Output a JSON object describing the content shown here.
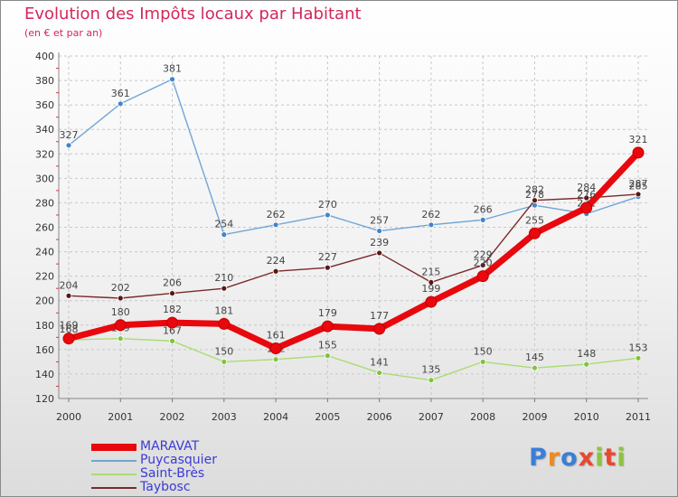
{
  "header": {
    "title": "Evolution des Impôts locaux par Habitant",
    "subtitle": "(en € et par an)"
  },
  "brand": {
    "text": "Proxiti",
    "letter_colors": [
      "#3a7fd5",
      "#f08a1c",
      "#3a7fd5",
      "#e64a2e",
      "#8bc53f",
      "#e64a2e",
      "#8bc53f"
    ]
  },
  "chart_data": {
    "type": "line",
    "x": [
      "2000",
      "2001",
      "2002",
      "2003",
      "2004",
      "2005",
      "2006",
      "2007",
      "2008",
      "2009",
      "2010",
      "2011"
    ],
    "ylim": [
      120,
      400
    ],
    "yticks": [
      120,
      140,
      160,
      180,
      200,
      220,
      240,
      260,
      280,
      300,
      320,
      340,
      360,
      380,
      400
    ],
    "grid": true,
    "legend_position": "bottom-left",
    "series": [
      {
        "name": "MARAVAT",
        "color": "#e8080d",
        "marker_color": "#e8080d",
        "emphasis": true,
        "values": [
          169,
          180,
          182,
          181,
          161,
          179,
          177,
          199,
          220,
          255,
          276,
          321
        ]
      },
      {
        "name": "Puycasquier",
        "color": "#6fa6d6",
        "marker_color": "#3f86c9",
        "emphasis": false,
        "values": [
          327,
          361,
          381,
          254,
          262,
          270,
          257,
          262,
          266,
          278,
          271,
          285
        ]
      },
      {
        "name": "Saint-Brès",
        "color": "#a9dc72",
        "marker_color": "#80c43c",
        "emphasis": false,
        "values": [
          168,
          169,
          167,
          150,
          152,
          155,
          141,
          135,
          150,
          145,
          148,
          153
        ]
      },
      {
        "name": "Taybosc",
        "color": "#7a2a2a",
        "marker_color": "#5a1515",
        "emphasis": false,
        "values": [
          204,
          202,
          206,
          210,
          224,
          227,
          239,
          215,
          229,
          282,
          284,
          287
        ]
      }
    ]
  }
}
